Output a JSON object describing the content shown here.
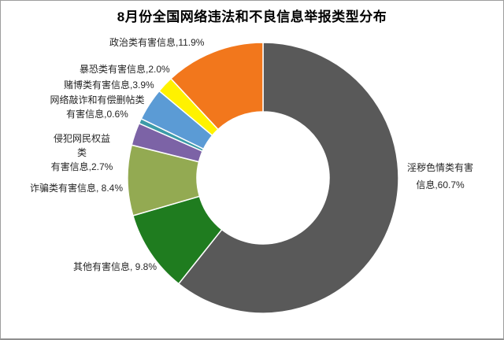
{
  "chart_data": {
    "type": "pie",
    "subtype": "donut",
    "title": "8月份全国网络违法和不良信息举报类型分布",
    "donut_hole_ratio": 0.49,
    "start_angle": "12-oclock",
    "direction": "clockwise",
    "unit": "%",
    "legend": "none",
    "series": [
      {
        "name": "淫秽色情类有害信息",
        "value": 60.7,
        "color": "#595959",
        "label_lines": [
          "淫秽色情类有害",
          "信息,60.7%"
        ]
      },
      {
        "name": "其他有害信息",
        "value": 9.8,
        "color": "#1F7C1F",
        "label_lines": [
          "其他有害信息, 9.8%"
        ]
      },
      {
        "name": "诈骗类有害信息",
        "value": 8.4,
        "color": "#93AA52",
        "label_lines": [
          "诈骗类有害信息, 8.4%"
        ]
      },
      {
        "name": "侵犯网民权益类有害信息",
        "value": 2.7,
        "color": "#7C63A6",
        "label_lines": [
          "侵犯网民权益类",
          "有害信息,2.7%"
        ]
      },
      {
        "name": "网络敲诈和有偿删帖类有害信息",
        "value": 0.6,
        "color": "#3C9BA8",
        "label_lines": [
          "网络敲诈和有偿删帖类",
          "有害信息,0.6%"
        ]
      },
      {
        "name": "赌博类有害信息",
        "value": 3.9,
        "color": "#5B9BD5",
        "label_lines": [
          "赌博类有害信息,3.9%"
        ]
      },
      {
        "name": "暴恐类有害信息",
        "value": 2.0,
        "color": "#FFF200",
        "label_lines": [
          "暴恐类有害信息,2.0%"
        ]
      },
      {
        "name": "政治类有害信息",
        "value": 11.9,
        "color": "#F2771C",
        "label_lines": [
          "政治类有害信息,11.9%"
        ]
      }
    ]
  }
}
